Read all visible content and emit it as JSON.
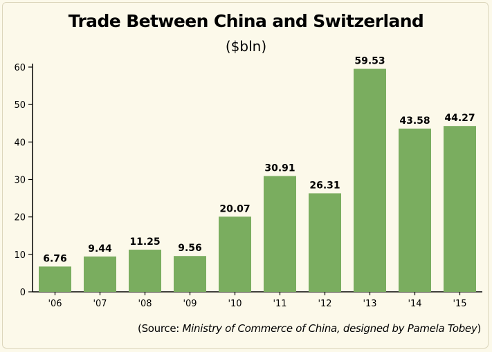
{
  "chart_data": {
    "type": "bar",
    "title": "Trade Between China and Switzerland",
    "subtitle": "($bln)",
    "categories": [
      "'06",
      "'07",
      "'08",
      "'09",
      "'10",
      "'11",
      "'12",
      "'13",
      "'14",
      "'15"
    ],
    "values": [
      6.76,
      9.44,
      11.25,
      9.56,
      20.07,
      30.91,
      26.31,
      59.53,
      43.58,
      44.27
    ],
    "data_labels": [
      "6.76",
      "9.44",
      "11.25",
      "9.56",
      "20.07",
      "30.91",
      "26.31",
      "59.53",
      "43.58",
      "44.27"
    ],
    "yticks": [
      0,
      10,
      20,
      30,
      40,
      50,
      60
    ],
    "ylim": [
      0,
      60
    ],
    "bar_color": "#7aad5f",
    "grid": false,
    "legend": "none"
  },
  "source": {
    "prefix": "(Source: ",
    "body": "Ministry of Commerce of China, designed by Pamela Tobey",
    "suffix": ")"
  }
}
